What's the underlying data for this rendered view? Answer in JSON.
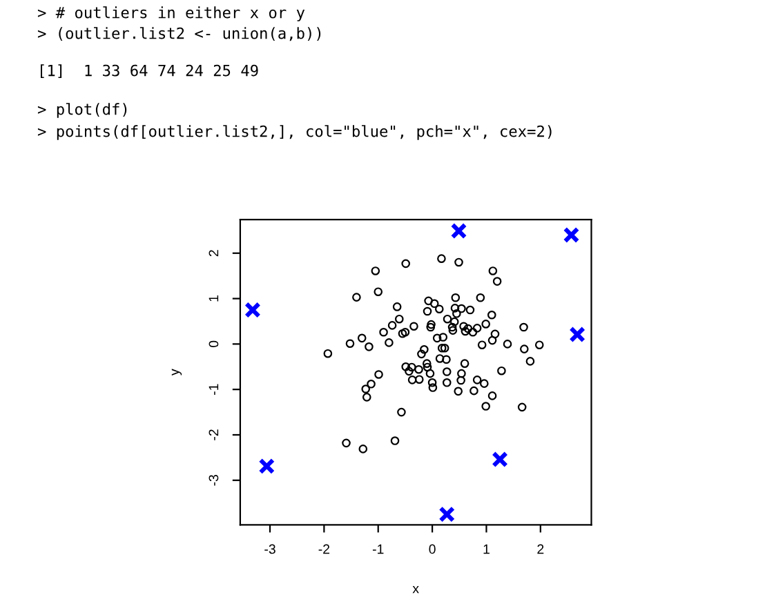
{
  "chart_data": {
    "type": "scatter",
    "xlabel": "x",
    "ylabel": "y",
    "annotations": [
      "> # outliers in either x or y",
      "> (outlier.list2 <- union(a,b))",
      "[1]  1 33 64 74 24 25 49",
      "> plot(df)",
      "> points(df[outlier.list2,], col=\"blue\", pch=\"x\", cex=2)"
    ],
    "xlim": [
      -3.55,
      2.94
    ],
    "ylim": [
      -3.98,
      2.74
    ],
    "xticks": [
      -3,
      -2,
      -1,
      0,
      1,
      2
    ],
    "yticks": [
      -3,
      -2,
      -1,
      0,
      1,
      2
    ],
    "grid": false,
    "series": [
      {
        "color": "#000000",
        "marker": "circle",
        "x": [
          0.17,
          -0.49,
          0.49,
          -1.05,
          1.12,
          1.2,
          -1.0,
          -1.4,
          0.89,
          0.43,
          -0.65,
          -0.07,
          0.04,
          0.13,
          0.42,
          0.54,
          0.7,
          -0.09,
          0.45,
          1.1,
          -0.61,
          0.28,
          0.41,
          -0.02,
          -0.03,
          0.99,
          -0.74,
          -0.34,
          0.58,
          0.37,
          0.66,
          0.83,
          1.69,
          -0.9,
          -0.5,
          -0.55,
          0.61,
          0.75,
          0.38,
          1.16,
          -1.3,
          0.09,
          0.2,
          1.11,
          -1.52,
          -0.8,
          0.92,
          1.39,
          1.98,
          -1.17,
          1.7,
          0.18,
          0.23,
          -1.93,
          -0.15,
          -0.2,
          1.81,
          0.14,
          0.26,
          0.6,
          -0.49,
          -0.1,
          -0.38,
          -0.09,
          -0.43,
          -0.25,
          -0.04,
          0.27,
          0.54,
          1.28,
          -0.99,
          -0.37,
          -0.24,
          0.53,
          0.83,
          0.96,
          0.0,
          0.27,
          -1.13,
          0.01,
          -1.23,
          0.48,
          0.77,
          -1.21,
          1.11,
          0.99,
          1.66,
          -0.57,
          -1.59,
          -1.28,
          -0.69
        ],
        "values": [
          1.88,
          1.77,
          1.8,
          1.61,
          1.61,
          1.38,
          1.15,
          1.03,
          1.02,
          1.02,
          0.82,
          0.95,
          0.89,
          0.77,
          0.79,
          0.78,
          0.75,
          0.72,
          0.67,
          0.64,
          0.55,
          0.55,
          0.49,
          0.43,
          0.37,
          0.44,
          0.41,
          0.39,
          0.39,
          0.37,
          0.34,
          0.35,
          0.37,
          0.26,
          0.26,
          0.23,
          0.28,
          0.26,
          0.3,
          0.22,
          0.13,
          0.13,
          0.15,
          0.08,
          0.01,
          0.03,
          -0.02,
          0.0,
          -0.02,
          -0.06,
          -0.11,
          -0.09,
          -0.09,
          -0.21,
          -0.12,
          -0.22,
          -0.38,
          -0.32,
          -0.34,
          -0.43,
          -0.5,
          -0.43,
          -0.51,
          -0.51,
          -0.6,
          -0.56,
          -0.65,
          -0.61,
          -0.65,
          -0.59,
          -0.67,
          -0.79,
          -0.78,
          -0.8,
          -0.79,
          -0.87,
          -0.85,
          -0.85,
          -0.88,
          -0.96,
          -0.99,
          -1.04,
          -1.03,
          -1.17,
          -1.14,
          -1.37,
          -1.39,
          -1.5,
          -2.18,
          -2.31,
          -2.13
        ]
      },
      {
        "color": "#0000ff",
        "marker": "cross",
        "x": [
          0.49,
          2.57,
          -3.32,
          2.68,
          -3.06,
          1.25,
          0.27
        ],
        "values": [
          2.49,
          2.4,
          0.75,
          0.21,
          -2.69,
          -2.54,
          -3.75
        ]
      }
    ]
  }
}
